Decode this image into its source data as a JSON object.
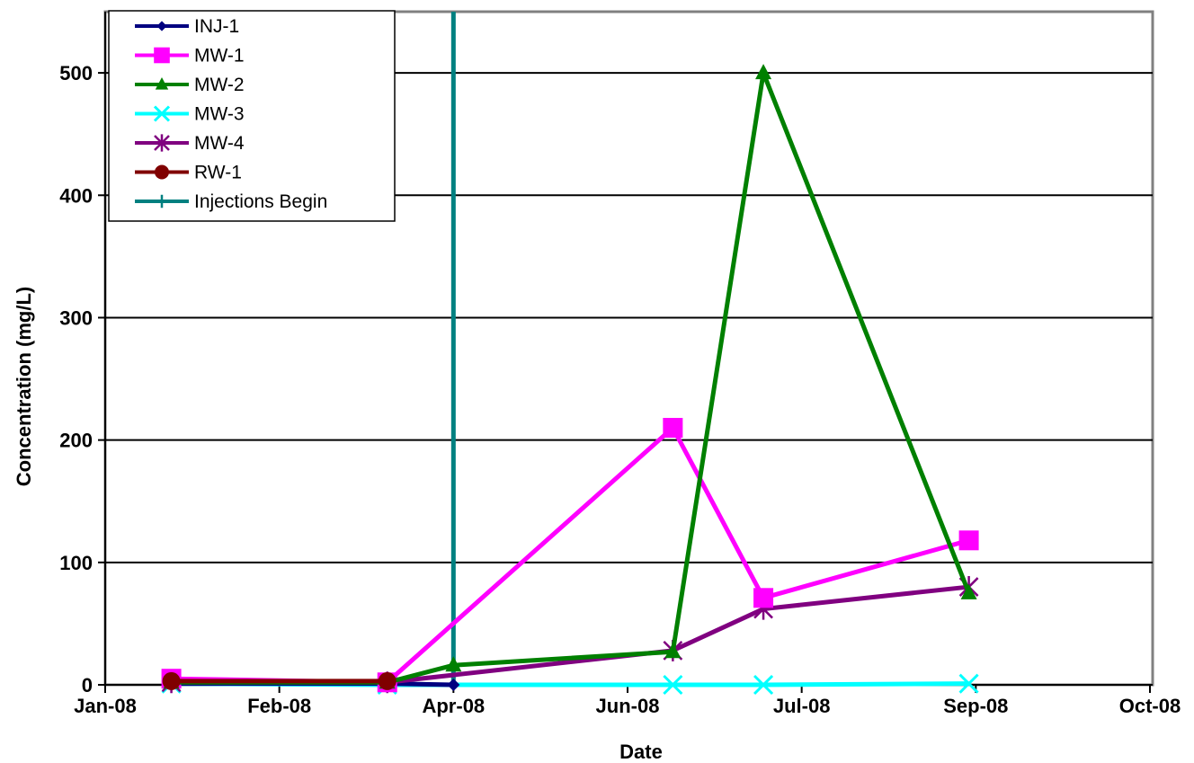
{
  "chart_data": {
    "type": "line",
    "title": "",
    "xlabel": "Date",
    "ylabel": "Concentration (mg/L)",
    "ylim": [
      0,
      550
    ],
    "y_ticks": [
      0,
      100,
      200,
      300,
      400,
      500
    ],
    "x_ticks": [
      "Jan-08",
      "Feb-08",
      "Apr-08",
      "Jun-08",
      "Jul-08",
      "Sep-08",
      "Oct-08"
    ],
    "xlim": [
      "2008-01-01",
      "2008-10-15"
    ],
    "x_tick_dates": [
      "2008-01-01",
      "2008-02-20",
      "2008-04-10",
      "2008-05-30",
      "2008-07-19",
      "2008-09-07",
      "2008-10-27"
    ],
    "grid": "horizontal",
    "legend_position": "top-left",
    "series": [
      {
        "name": "INJ-1",
        "color": "#000080",
        "marker": "diamond",
        "x": [
          "2008-01-20",
          "2008-03-22",
          "2008-04-10"
        ],
        "y": [
          1,
          1,
          0
        ]
      },
      {
        "name": "MW-1",
        "color": "#FF00FF",
        "marker": "square",
        "x": [
          "2008-01-20",
          "2008-03-22",
          "2008-06-12",
          "2008-07-08",
          "2008-09-05"
        ],
        "y": [
          5,
          2,
          210,
          71,
          118
        ]
      },
      {
        "name": "MW-2",
        "color": "#008000",
        "marker": "triangle",
        "x": [
          "2008-01-20",
          "2008-03-22",
          "2008-04-10",
          "2008-06-12",
          "2008-07-08",
          "2008-09-05"
        ],
        "y": [
          2,
          2,
          16,
          27,
          500,
          75
        ]
      },
      {
        "name": "MW-3",
        "color": "#00FFFF",
        "marker": "x",
        "x": [
          "2008-01-20",
          "2008-03-22",
          "2008-06-12",
          "2008-07-08",
          "2008-09-05"
        ],
        "y": [
          1,
          0,
          0,
          0,
          1
        ]
      },
      {
        "name": "MW-4",
        "color": "#800080",
        "marker": "star",
        "x": [
          "2008-01-20",
          "2008-03-22",
          "2008-06-12",
          "2008-07-08",
          "2008-09-05"
        ],
        "y": [
          2,
          2,
          28,
          62,
          80
        ]
      },
      {
        "name": "RW-1",
        "color": "#800000",
        "marker": "circle",
        "x": [
          "2008-01-20",
          "2008-03-22"
        ],
        "y": [
          3,
          3
        ]
      },
      {
        "name": "Injections Begin",
        "color": "#008080",
        "marker": "plus",
        "type": "vertical-line",
        "x": [
          "2008-04-10",
          "2008-04-10"
        ],
        "y": [
          0,
          550
        ]
      }
    ]
  }
}
